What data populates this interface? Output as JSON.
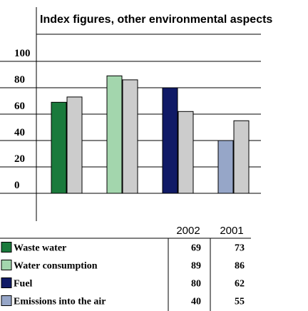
{
  "chart_data": {
    "type": "bar",
    "title": "Index figures, other environmental aspects",
    "ylim": [
      0,
      100
    ],
    "yticks": [
      "100",
      "80",
      "60",
      "40",
      "20",
      "0"
    ],
    "years": [
      "2002",
      "2001"
    ],
    "series": [
      {
        "name": "Waste water",
        "values": [
          69,
          73
        ],
        "color_2002": "#1a7a3c",
        "color_2001": "#cccccc"
      },
      {
        "name": "Water consumption",
        "values": [
          89,
          86
        ],
        "color_2002": "#a3d6ad",
        "color_2001": "#cccccc"
      },
      {
        "name": "Fuel",
        "values": [
          80,
          62
        ],
        "color_2002": "#101a66",
        "color_2001": "#cccccc"
      },
      {
        "name": "Emissions into the air",
        "values": [
          40,
          55
        ],
        "color_2002": "#96a6c8",
        "color_2001": "#cccccc"
      }
    ],
    "grid": true,
    "legend": "table-below"
  }
}
